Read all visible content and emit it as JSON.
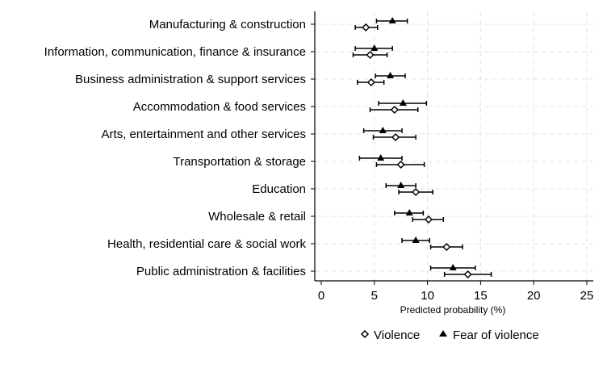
{
  "chart_data": {
    "type": "scatter",
    "subtype": "dot-with-error-bars",
    "xlabel": "Predicted probability (%)",
    "xlim": [
      0,
      25
    ],
    "xticks": [
      0,
      5,
      10,
      15,
      20,
      25
    ],
    "grid": true,
    "legend_position": "bottom",
    "categories": [
      "Manufacturing & construction",
      "Information, communication, finance & insurance",
      "Business administration & support services",
      "Accommodation & food services",
      "Arts, entertainment and other services",
      "Transportation & storage",
      "Education",
      "Wholesale & retail",
      "Health, residential care & social work",
      "Public administration & facilities"
    ],
    "series": [
      {
        "name": "Violence",
        "marker": "hollow-diamond",
        "values": [
          4.2,
          4.6,
          4.7,
          6.9,
          7.0,
          7.5,
          8.9,
          10.1,
          11.8,
          13.8
        ],
        "lower": [
          3.2,
          3.0,
          3.4,
          4.6,
          4.9,
          5.2,
          7.3,
          8.6,
          10.3,
          11.6
        ],
        "upper": [
          5.3,
          6.2,
          5.9,
          9.1,
          8.9,
          9.7,
          10.5,
          11.5,
          13.3,
          16.0
        ]
      },
      {
        "name": "Fear of violence",
        "marker": "filled-triangle",
        "values": [
          6.7,
          5.0,
          6.5,
          7.7,
          5.8,
          5.6,
          7.5,
          8.3,
          8.9,
          12.4
        ],
        "lower": [
          5.2,
          3.2,
          5.1,
          5.4,
          4.0,
          3.6,
          6.1,
          6.9,
          7.6,
          10.3
        ],
        "upper": [
          8.1,
          6.7,
          7.9,
          9.9,
          7.6,
          7.6,
          8.9,
          9.6,
          10.2,
          14.5
        ]
      }
    ]
  }
}
